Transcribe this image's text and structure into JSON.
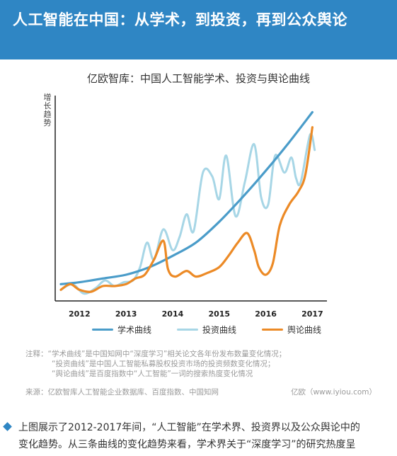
{
  "header": {
    "title": "人工智能在中国：从学术，到投资，再到公众舆论"
  },
  "chart_data": {
    "type": "line",
    "title": "亿欧智库：中国人工智能学术、投资与舆论曲线",
    "ylabel": "增长趋势",
    "xlabel": "",
    "x_ticks": [
      "2012",
      "2013",
      "2014",
      "2015",
      "2016",
      "2017"
    ],
    "xlim": [
      2011.6,
      2017.1
    ],
    "ylim": [
      0,
      100
    ],
    "legend_position": "bottom",
    "series": [
      {
        "name": "学术曲线",
        "color": "#4a9cc9",
        "points": [
          [
            2011.6,
            4
          ],
          [
            2012,
            5
          ],
          [
            2012.5,
            7
          ],
          [
            2013,
            9
          ],
          [
            2013.5,
            13
          ],
          [
            2014,
            19
          ],
          [
            2014.5,
            26
          ],
          [
            2015,
            37
          ],
          [
            2015.5,
            50
          ],
          [
            2016,
            64
          ],
          [
            2016.5,
            79
          ],
          [
            2017,
            95
          ]
        ]
      },
      {
        "name": "投资曲线",
        "color": "#a7d6e6",
        "points": [
          [
            2011.6,
            1
          ],
          [
            2011.85,
            4
          ],
          [
            2012.1,
            -1
          ],
          [
            2012.35,
            2
          ],
          [
            2012.55,
            6
          ],
          [
            2012.75,
            3
          ],
          [
            2012.95,
            5
          ],
          [
            2013.15,
            6
          ],
          [
            2013.3,
            13
          ],
          [
            2013.45,
            26
          ],
          [
            2013.6,
            17
          ],
          [
            2013.8,
            33
          ],
          [
            2014,
            22
          ],
          [
            2014.15,
            29
          ],
          [
            2014.3,
            41
          ],
          [
            2014.45,
            32
          ],
          [
            2014.65,
            63
          ],
          [
            2014.85,
            61
          ],
          [
            2015,
            49
          ],
          [
            2015.15,
            72
          ],
          [
            2015.35,
            40
          ],
          [
            2015.55,
            58
          ],
          [
            2015.75,
            78
          ],
          [
            2015.9,
            50
          ],
          [
            2016.05,
            46
          ],
          [
            2016.2,
            72
          ],
          [
            2016.4,
            63
          ],
          [
            2016.55,
            71
          ],
          [
            2016.65,
            60
          ],
          [
            2016.75,
            58
          ],
          [
            2016.95,
            83
          ],
          [
            2017.05,
            75
          ]
        ]
      },
      {
        "name": "舆论曲线",
        "color": "#ec8a26",
        "points": [
          [
            2011.6,
            1
          ],
          [
            2011.8,
            4
          ],
          [
            2012,
            1
          ],
          [
            2012.25,
            0
          ],
          [
            2012.5,
            3
          ],
          [
            2012.75,
            3
          ],
          [
            2013,
            4
          ],
          [
            2013.2,
            7
          ],
          [
            2013.4,
            9
          ],
          [
            2013.6,
            17
          ],
          [
            2013.8,
            27
          ],
          [
            2013.9,
            12
          ],
          [
            2014.05,
            8
          ],
          [
            2014.3,
            11
          ],
          [
            2014.5,
            8
          ],
          [
            2014.75,
            10
          ],
          [
            2015,
            13
          ],
          [
            2015.2,
            19
          ],
          [
            2015.4,
            26
          ],
          [
            2015.6,
            31
          ],
          [
            2015.75,
            22
          ],
          [
            2015.85,
            13
          ],
          [
            2016,
            9
          ],
          [
            2016.15,
            15
          ],
          [
            2016.3,
            35
          ],
          [
            2016.5,
            46
          ],
          [
            2016.7,
            53
          ],
          [
            2016.85,
            62
          ],
          [
            2017,
            87
          ]
        ]
      }
    ]
  },
  "notes": {
    "line1": "注释：“学术曲线”是中国知网中“深度学习”相关论文各年份发布数量变化情况；",
    "line2": "“投资曲线”是中国人工智能私募股权投资市场的投资频数变化情况；",
    "line3": "“舆论曲线”是百度指数中“人工智能”一词的搜索热度变化情况",
    "source_left": "来源：亿欧智库人工智能企业数据库、百度指数、中国知网",
    "source_right": "亿欧（www.iyiou.com）"
  },
  "paragraph": {
    "line1": "上图展示了2012-2017年间，“人工智能”在学术界、投资界以及公众舆论中的",
    "line2": "变化趋势。从三条曲线的变化趋势来看，学术界关于“深度学习”的研究热度呈"
  },
  "colors": {
    "banner": "#2f86c4",
    "text": "#333333",
    "note": "#9a9a9a"
  }
}
